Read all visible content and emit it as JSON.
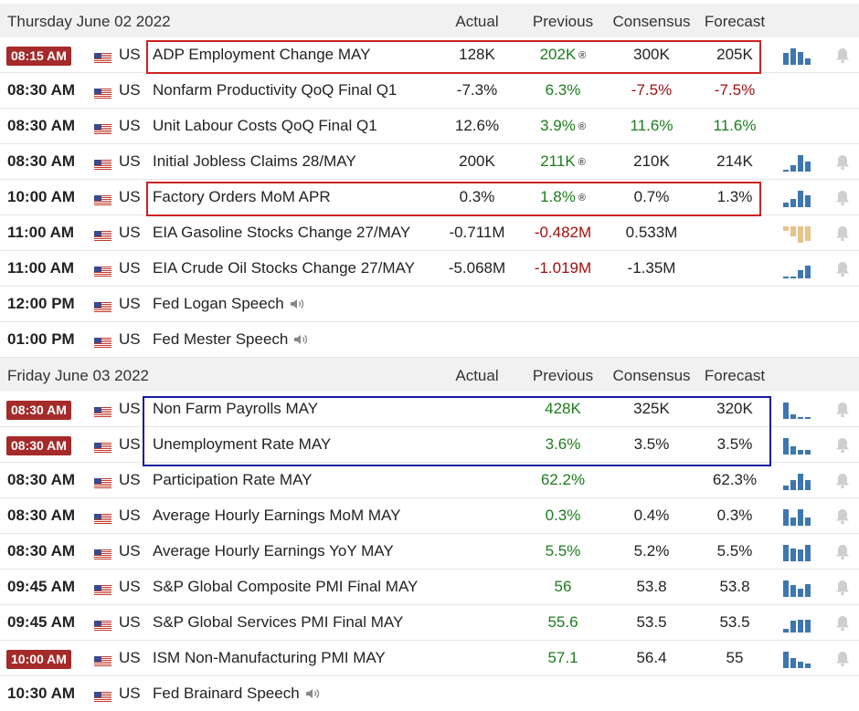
{
  "columns": {
    "actual": "Actual",
    "previous": "Previous",
    "consensus": "Consensus",
    "forecast": "Forecast"
  },
  "colors": {
    "badge": "#a52a2a",
    "green": "#1c7c1c",
    "red": "#a01010",
    "bar": "#3e76b0",
    "bar_alt": "#e8c48a",
    "box_red": "#cc2222",
    "box_blue": "#1a1aa0"
  },
  "days": [
    {
      "title": "Thursday June 02 2022",
      "rows": [
        {
          "time": "08:15 AM",
          "badge": true,
          "country": "US",
          "event": "ADP Employment Change MAY",
          "actual": "128K",
          "previous": "202K",
          "previous_color": "green",
          "previous_rev": "®",
          "consensus": "300K",
          "consensus_color": "",
          "forecast": "205K",
          "forecast_color": "",
          "chart": [
            0.7,
            1.0,
            0.8,
            0.4
          ],
          "chart_up": false,
          "speech": false
        },
        {
          "time": "08:30 AM",
          "badge": false,
          "country": "US",
          "event": "Nonfarm Productivity QoQ Final Q1",
          "actual": "-7.3%",
          "previous": "6.3%",
          "previous_color": "green",
          "previous_rev": "",
          "consensus": "-7.5%",
          "consensus_color": "red",
          "forecast": "-7.5%",
          "forecast_color": "red",
          "chart": null,
          "chart_up": false,
          "speech": false
        },
        {
          "time": "08:30 AM",
          "badge": false,
          "country": "US",
          "event": "Unit Labour Costs QoQ Final Q1",
          "actual": "12.6%",
          "previous": "3.9%",
          "previous_color": "green",
          "previous_rev": "®",
          "consensus": "11.6%",
          "consensus_color": "green",
          "forecast": "11.6%",
          "forecast_color": "green",
          "chart": null,
          "chart_up": false,
          "speech": false
        },
        {
          "time": "08:30 AM",
          "badge": false,
          "country": "US",
          "event": "Initial Jobless Claims 28/MAY",
          "actual": "200K",
          "previous": "211K",
          "previous_color": "green",
          "previous_rev": "®",
          "consensus": "210K",
          "consensus_color": "",
          "forecast": "214K",
          "forecast_color": "",
          "chart": [
            0.1,
            0.4,
            1.0,
            0.6
          ],
          "chart_up": false,
          "speech": false
        },
        {
          "time": "10:00 AM",
          "badge": false,
          "country": "US",
          "event": "Factory Orders MoM APR",
          "actual": "0.3%",
          "previous": "1.8%",
          "previous_color": "green",
          "previous_rev": "®",
          "consensus": "0.7%",
          "consensus_color": "",
          "forecast": "1.3%",
          "forecast_color": "",
          "chart": [
            0.3,
            0.5,
            1.0,
            0.7
          ],
          "chart_up": false,
          "speech": false
        },
        {
          "time": "11:00 AM",
          "badge": false,
          "country": "US",
          "event": "EIA Gasoline Stocks Change 27/MAY",
          "actual": "-0.711M",
          "previous": "-0.482M",
          "previous_color": "red",
          "previous_rev": "",
          "consensus": "0.533M",
          "consensus_color": "",
          "forecast": "",
          "forecast_color": "",
          "chart": [
            0.3,
            0.6,
            1.0,
            0.9
          ],
          "chart_up": true,
          "speech": false
        },
        {
          "time": "11:00 AM",
          "badge": false,
          "country": "US",
          "event": "EIA Crude Oil Stocks Change 27/MAY",
          "actual": "-5.068M",
          "previous": "-1.019M",
          "previous_color": "red",
          "previous_rev": "",
          "consensus": "-1.35M",
          "consensus_color": "",
          "forecast": "",
          "forecast_color": "",
          "chart": [
            0.05,
            0.05,
            0.5,
            0.8
          ],
          "chart_up": false,
          "speech": false
        },
        {
          "time": "12:00 PM",
          "badge": false,
          "country": "US",
          "event": "Fed Logan Speech",
          "actual": "",
          "previous": "",
          "previous_color": "",
          "previous_rev": "",
          "consensus": "",
          "consensus_color": "",
          "forecast": "",
          "forecast_color": "",
          "chart": null,
          "chart_up": false,
          "speech": true
        },
        {
          "time": "01:00 PM",
          "badge": false,
          "country": "US",
          "event": "Fed Mester Speech",
          "actual": "",
          "previous": "",
          "previous_color": "",
          "previous_rev": "",
          "consensus": "",
          "consensus_color": "",
          "forecast": "",
          "forecast_color": "",
          "chart": null,
          "chart_up": false,
          "speech": true
        }
      ]
    },
    {
      "title": "Friday June 03 2022",
      "rows": [
        {
          "time": "08:30 AM",
          "badge": true,
          "country": "US",
          "event": "Non Farm Payrolls MAY",
          "actual": "",
          "previous": "428K",
          "previous_color": "green",
          "previous_rev": "",
          "consensus": "325K",
          "consensus_color": "",
          "forecast": "320K",
          "forecast_color": "",
          "chart": [
            1.0,
            0.3,
            0.1,
            0.1
          ],
          "chart_up": false,
          "speech": false
        },
        {
          "time": "08:30 AM",
          "badge": true,
          "country": "US",
          "event": "Unemployment Rate MAY",
          "actual": "",
          "previous": "3.6%",
          "previous_color": "green",
          "previous_rev": "",
          "consensus": "3.5%",
          "consensus_color": "",
          "forecast": "3.5%",
          "forecast_color": "",
          "chart": [
            1.0,
            0.5,
            0.3,
            0.3
          ],
          "chart_up": false,
          "speech": false
        },
        {
          "time": "08:30 AM",
          "badge": false,
          "country": "US",
          "event": "Participation Rate MAY",
          "actual": "",
          "previous": "62.2%",
          "previous_color": "green",
          "previous_rev": "",
          "consensus": "",
          "consensus_color": "",
          "forecast": "62.3%",
          "forecast_color": "",
          "chart": [
            0.3,
            0.6,
            1.0,
            0.6
          ],
          "chart_up": false,
          "speech": false
        },
        {
          "time": "08:30 AM",
          "badge": false,
          "country": "US",
          "event": "Average Hourly Earnings MoM MAY",
          "actual": "",
          "previous": "0.3%",
          "previous_color": "green",
          "previous_rev": "",
          "consensus": "0.4%",
          "consensus_color": "",
          "forecast": "0.3%",
          "forecast_color": "",
          "chart": [
            1.0,
            0.5,
            1.0,
            0.5
          ],
          "chart_up": false,
          "speech": false
        },
        {
          "time": "08:30 AM",
          "badge": false,
          "country": "US",
          "event": "Average Hourly Earnings YoY MAY",
          "actual": "",
          "previous": "5.5%",
          "previous_color": "green",
          "previous_rev": "",
          "consensus": "5.2%",
          "consensus_color": "",
          "forecast": "5.5%",
          "forecast_color": "",
          "chart": [
            1.0,
            0.8,
            0.7,
            1.0
          ],
          "chart_up": false,
          "speech": false
        },
        {
          "time": "09:45 AM",
          "badge": false,
          "country": "US",
          "event": "S&P Global Composite PMI Final MAY",
          "actual": "",
          "previous": "56",
          "previous_color": "green",
          "previous_rev": "",
          "consensus": "53.8",
          "consensus_color": "",
          "forecast": "53.8",
          "forecast_color": "",
          "chart": [
            1.0,
            0.7,
            0.5,
            0.8
          ],
          "chart_up": false,
          "speech": false
        },
        {
          "time": "09:45 AM",
          "badge": false,
          "country": "US",
          "event": "S&P Global Services PMI Final MAY",
          "actual": "",
          "previous": "55.6",
          "previous_color": "green",
          "previous_rev": "",
          "consensus": "53.5",
          "consensus_color": "",
          "forecast": "53.5",
          "forecast_color": "",
          "chart": [
            0.2,
            0.7,
            0.8,
            0.8
          ],
          "chart_up": false,
          "speech": false
        },
        {
          "time": "10:00 AM",
          "badge": true,
          "country": "US",
          "event": "ISM Non-Manufacturing PMI MAY",
          "actual": "",
          "previous": "57.1",
          "previous_color": "green",
          "previous_rev": "",
          "consensus": "56.4",
          "consensus_color": "",
          "forecast": "55",
          "forecast_color": "",
          "chart": [
            1.0,
            0.6,
            0.4,
            0.3
          ],
          "chart_up": false,
          "speech": false
        },
        {
          "time": "10:30 AM",
          "badge": false,
          "country": "US",
          "event": "Fed Brainard Speech",
          "actual": "",
          "previous": "",
          "previous_color": "",
          "previous_rev": "",
          "consensus": "",
          "consensus_color": "",
          "forecast": "",
          "forecast_color": "",
          "chart": null,
          "chart_up": false,
          "speech": true
        }
      ]
    }
  ]
}
